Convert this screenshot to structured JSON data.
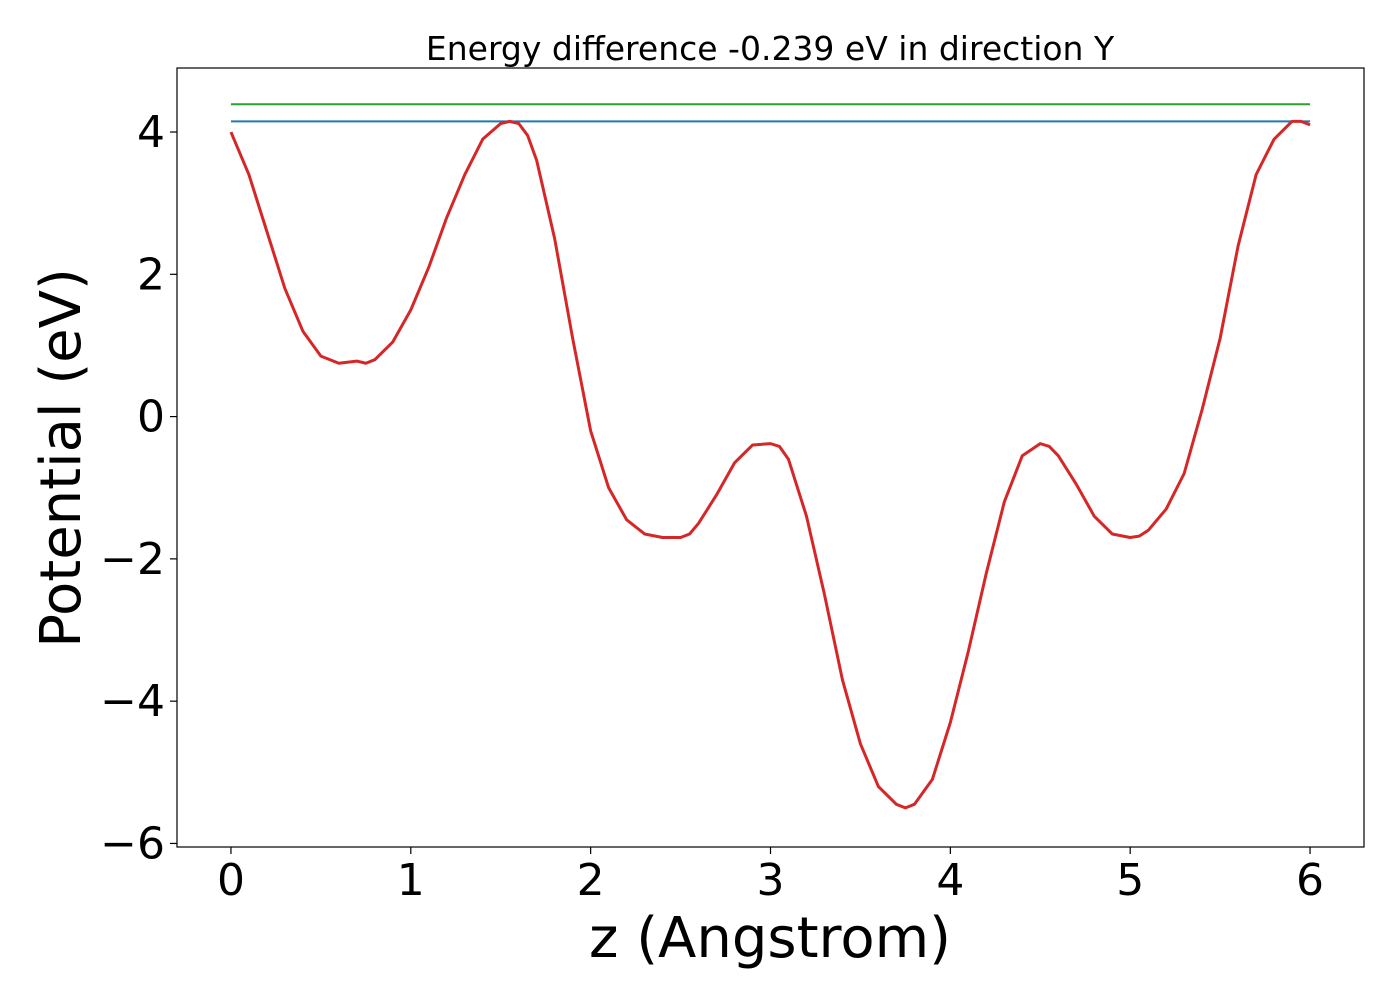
{
  "chart_data": {
    "type": "line",
    "title": "Energy difference -0.239 eV in direction Y",
    "xlabel": "z (Angstrom)",
    "ylabel": "Potential (eV)",
    "xlim": [
      -0.3,
      6.3
    ],
    "ylim": [
      -6.05,
      4.9
    ],
    "grid": false,
    "x_ticks": [
      0,
      1,
      2,
      3,
      4,
      5,
      6
    ],
    "x_tick_labels": [
      "0",
      "1",
      "2",
      "3",
      "4",
      "5",
      "6"
    ],
    "y_ticks": [
      4,
      2,
      0,
      -2,
      -4,
      -6
    ],
    "y_tick_labels": [
      "4",
      "2",
      "0",
      "−2",
      "−4",
      "−6"
    ],
    "series": [
      {
        "color": "#d62728",
        "x": [
          0,
          0.1,
          0.2,
          0.3,
          0.4,
          0.5,
          0.6,
          0.7,
          0.75,
          0.8,
          0.9,
          1.0,
          1.1,
          1.2,
          1.3,
          1.4,
          1.5,
          1.55,
          1.6,
          1.65,
          1.7,
          1.8,
          1.9,
          2.0,
          2.1,
          2.2,
          2.3,
          2.4,
          2.5,
          2.55,
          2.6,
          2.7,
          2.8,
          2.9,
          3.0,
          3.05,
          3.1,
          3.2,
          3.3,
          3.4,
          3.5,
          3.6,
          3.7,
          3.75,
          3.8,
          3.9,
          4.0,
          4.1,
          4.2,
          4.3,
          4.4,
          4.5,
          4.55,
          4.6,
          4.7,
          4.8,
          4.9,
          5.0,
          5.05,
          5.1,
          5.2,
          5.3,
          5.4,
          5.5,
          5.6,
          5.7,
          5.8,
          5.9,
          5.95,
          6.0
        ],
        "y": [
          4.0,
          3.4,
          2.6,
          1.8,
          1.2,
          0.85,
          0.75,
          0.78,
          0.75,
          0.8,
          1.05,
          1.5,
          2.1,
          2.8,
          3.4,
          3.9,
          4.12,
          4.15,
          4.12,
          3.95,
          3.6,
          2.5,
          1.1,
          -0.2,
          -1.0,
          -1.45,
          -1.65,
          -1.7,
          -1.7,
          -1.65,
          -1.5,
          -1.1,
          -0.65,
          -0.4,
          -0.38,
          -0.42,
          -0.6,
          -1.4,
          -2.5,
          -3.7,
          -4.6,
          -5.2,
          -5.45,
          -5.5,
          -5.45,
          -5.1,
          -4.3,
          -3.3,
          -2.2,
          -1.2,
          -0.55,
          -0.38,
          -0.42,
          -0.55,
          -0.95,
          -1.4,
          -1.65,
          -1.7,
          -1.68,
          -1.6,
          -1.3,
          -0.8,
          0.1,
          1.1,
          2.4,
          3.4,
          3.9,
          4.15,
          4.15,
          4.1
        ]
      },
      {
        "color": "#1f77b4",
        "x": [
          0,
          6
        ],
        "y": [
          4.15,
          4.15
        ]
      },
      {
        "color": "#2ca02c",
        "x": [
          0,
          6
        ],
        "y": [
          4.39,
          4.39
        ]
      }
    ]
  }
}
